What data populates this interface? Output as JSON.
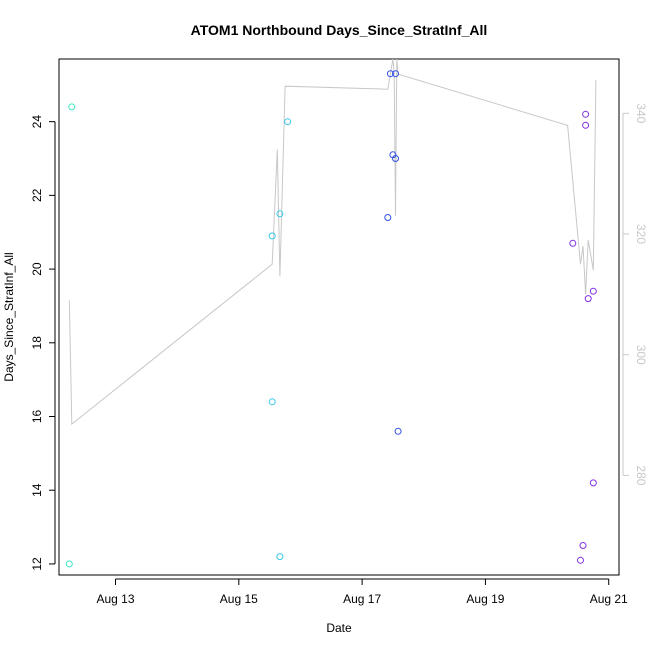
{
  "chart_data": {
    "type": "scatter",
    "title": "ATOM1 Northbound Days_Since_StratInf_All",
    "xlabel": "Date",
    "ylabel": "Days_Since_StratInf_All",
    "x_ticks": [
      {
        "value": "2023-08-13",
        "label": "Aug 13"
      },
      {
        "value": "2023-08-15",
        "label": "Aug 15"
      },
      {
        "value": "2023-08-17",
        "label": "Aug 17"
      },
      {
        "value": "2023-08-19",
        "label": "Aug 19"
      },
      {
        "value": "2023-08-21",
        "label": "Aug 21"
      }
    ],
    "xlim": [
      "2023-08-12T02:00",
      "2023-08-21T04:00"
    ],
    "y_ticks": [
      12,
      14,
      16,
      18,
      20,
      22,
      24
    ],
    "ylim": [
      11.7,
      25.7
    ],
    "y2_ticks": [
      280,
      300,
      320,
      340
    ],
    "y2lim": [
      263.5,
      349
    ],
    "grid": false,
    "points": [
      {
        "x": "2023-08-12T06:00",
        "y": 12.0,
        "color": "#40e8c8"
      },
      {
        "x": "2023-08-12T07:00",
        "y": 24.4,
        "color": "#40e8c8"
      },
      {
        "x": "2023-08-15T13:00",
        "y": 16.4,
        "color": "#38c8e8"
      },
      {
        "x": "2023-08-15T13:00",
        "y": 20.9,
        "color": "#38c8e8"
      },
      {
        "x": "2023-08-15T16:00",
        "y": 21.5,
        "color": "#38c8e8"
      },
      {
        "x": "2023-08-15T16:00",
        "y": 12.2,
        "color": "#38c8e8"
      },
      {
        "x": "2023-08-15T19:00",
        "y": 24.0,
        "color": "#38c8e8"
      },
      {
        "x": "2023-08-17T10:00",
        "y": 21.4,
        "color": "#3050e0"
      },
      {
        "x": "2023-08-17T11:00",
        "y": 25.3,
        "color": "#3050e0"
      },
      {
        "x": "2023-08-17T12:00",
        "y": 23.1,
        "color": "#3050e0"
      },
      {
        "x": "2023-08-17T13:00",
        "y": 23.0,
        "color": "#3050e0"
      },
      {
        "x": "2023-08-17T13:00",
        "y": 25.3,
        "color": "#3050e0"
      },
      {
        "x": "2023-08-17T14:00",
        "y": 15.6,
        "color": "#3050e0"
      },
      {
        "x": "2023-08-20T10:00",
        "y": 20.7,
        "color": "#8030e0"
      },
      {
        "x": "2023-08-20T13:00",
        "y": 12.1,
        "color": "#8030e0"
      },
      {
        "x": "2023-08-20T14:00",
        "y": 12.5,
        "color": "#8030e0"
      },
      {
        "x": "2023-08-20T15:00",
        "y": 23.9,
        "color": "#8030e0"
      },
      {
        "x": "2023-08-20T15:00",
        "y": 24.2,
        "color": "#8030e0"
      },
      {
        "x": "2023-08-20T16:00",
        "y": 19.2,
        "color": "#8030e0"
      },
      {
        "x": "2023-08-20T18:00",
        "y": 19.4,
        "color": "#8030e0"
      },
      {
        "x": "2023-08-20T18:00",
        "y": 14.2,
        "color": "#8030e0"
      }
    ],
    "line": {
      "color": "#c8c8c8",
      "axis": "right",
      "points": [
        {
          "x": "2023-08-12T06:00",
          "y": 309
        },
        {
          "x": "2023-08-12T07:00",
          "y": 288.5
        },
        {
          "x": "2023-08-15T13:00",
          "y": 315
        },
        {
          "x": "2023-08-15T15:00",
          "y": 334
        },
        {
          "x": "2023-08-15T16:00",
          "y": 313
        },
        {
          "x": "2023-08-15T18:00",
          "y": 344.5
        },
        {
          "x": "2023-08-17T10:00",
          "y": 344
        },
        {
          "x": "2023-08-17T12:00",
          "y": 349
        },
        {
          "x": "2023-08-17T12:30",
          "y": 346.5
        },
        {
          "x": "2023-08-17T13:00",
          "y": 323
        },
        {
          "x": "2023-08-17T13:30",
          "y": 349
        },
        {
          "x": "2023-08-17T14:00",
          "y": 346.5
        },
        {
          "x": "2023-08-20T08:00",
          "y": 338
        },
        {
          "x": "2023-08-20T13:00",
          "y": 315
        },
        {
          "x": "2023-08-20T14:00",
          "y": 318
        },
        {
          "x": "2023-08-20T15:00",
          "y": 310
        },
        {
          "x": "2023-08-20T16:00",
          "y": 319
        },
        {
          "x": "2023-08-20T18:00",
          "y": 314
        },
        {
          "x": "2023-08-20T19:00",
          "y": 345.5
        }
      ]
    }
  }
}
